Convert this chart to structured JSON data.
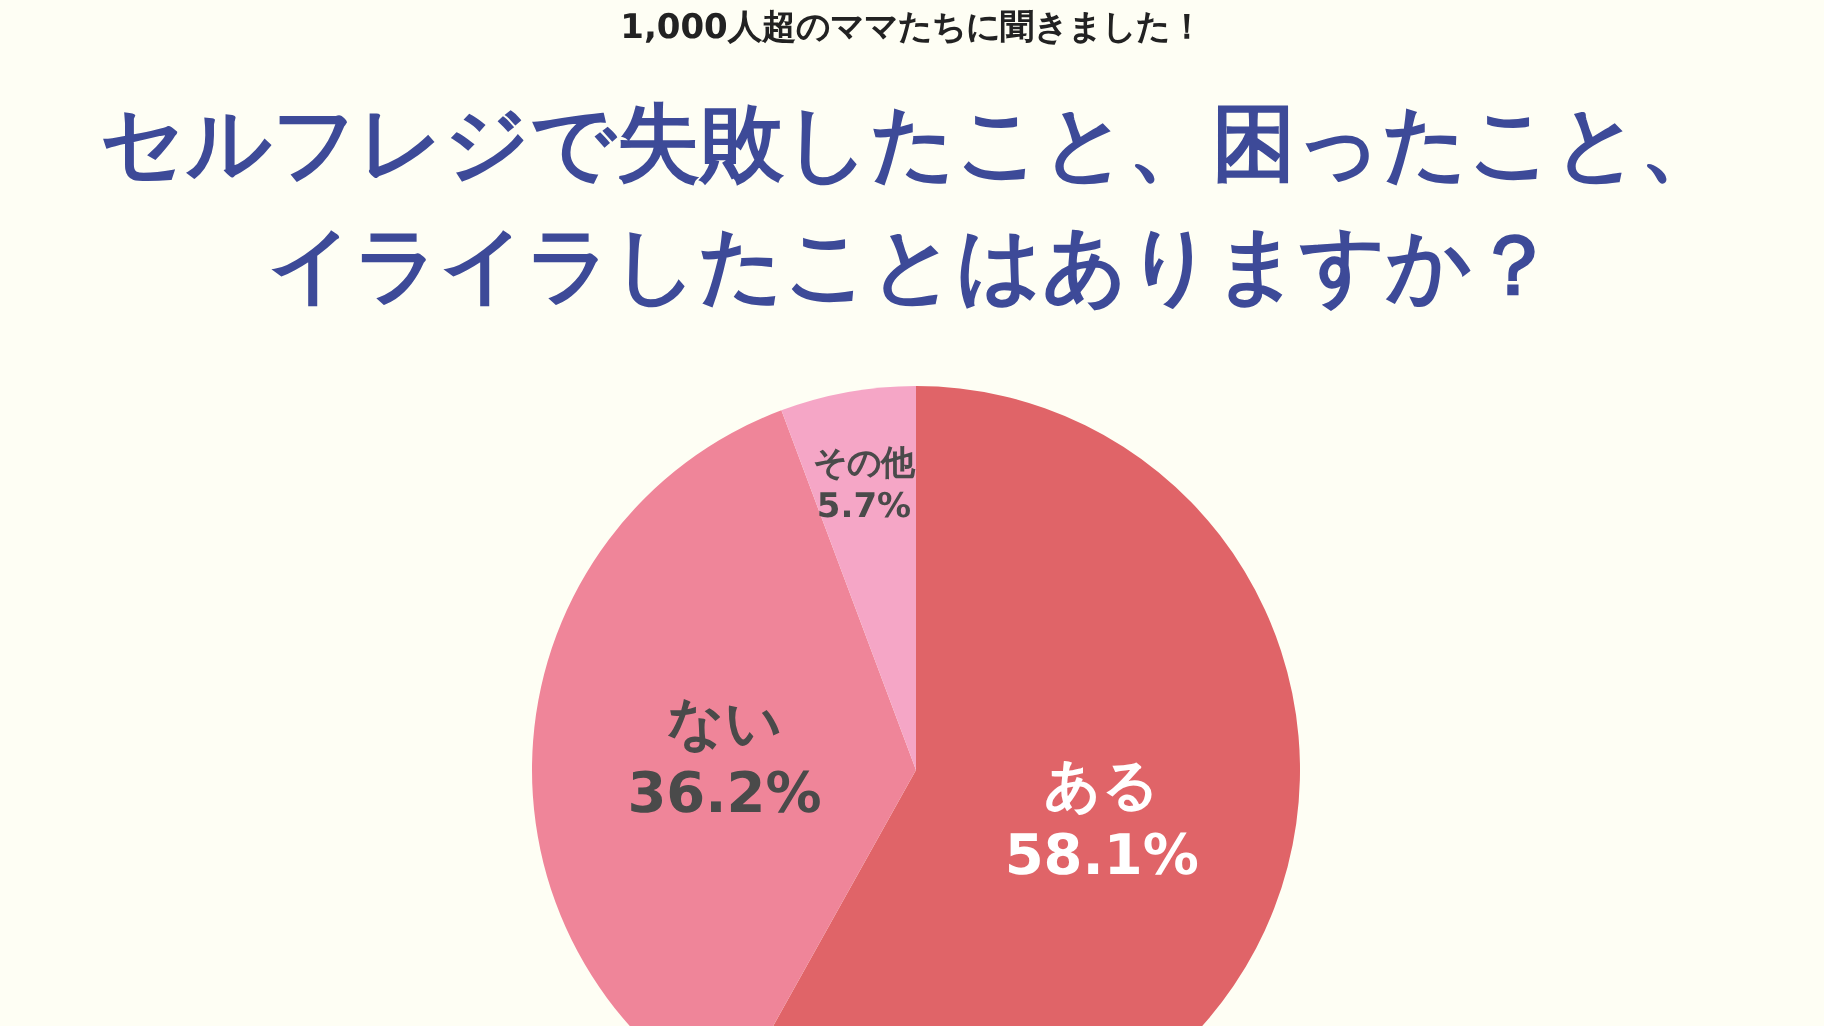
{
  "chart_data": {
    "type": "pie",
    "subtitle": "1,000人超のママたちに聞きました！",
    "title": "セルフレジで失敗したこと、困ったこと、イライラしたことはありますか？",
    "categories": [
      "ある",
      "ない",
      "その他"
    ],
    "values": [
      58.1,
      36.2,
      5.7
    ],
    "value_labels": [
      "58.1%",
      "36.2%",
      "5.7%"
    ],
    "colors": [
      "#e06468",
      "#ef8599",
      "#f5a6c6"
    ]
  }
}
